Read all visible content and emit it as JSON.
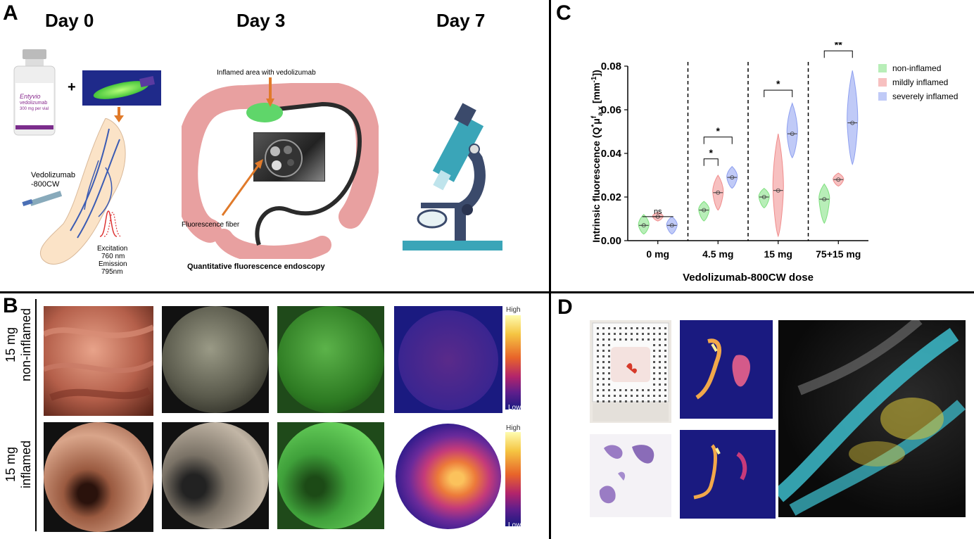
{
  "panelA": {
    "letter": "A",
    "day0": "Day 0",
    "day3": "Day 3",
    "day7": "Day 7",
    "plus": "+",
    "vial_brand": "Entyvio",
    "vial_drug": "vedolizumab",
    "vial_dose": "300 mg per vial",
    "vedolizumab_label_1": "Vedolizumab",
    "vedolizumab_label_2": "-800CW",
    "excitation_1": "Excitation",
    "excitation_2": "760 nm",
    "excitation_3": "Emission",
    "excitation_4": "795nm",
    "inflamed_area": "Inflamed area with vedolizumab",
    "fluorescence_fiber": "Fluorescence fiber",
    "quant_title": "Quantitative fluorescence endoscopy"
  },
  "panelB": {
    "letter": "B",
    "row1_line1": "15 mg",
    "row1_line2": "non-inflamed",
    "row2_line1": "15 mg",
    "row2_line2": "inflamed",
    "high": "High",
    "low": "Low"
  },
  "panelD": {
    "letter": "D"
  },
  "panelC": {
    "letter": "C"
  },
  "chart_data": {
    "type": "violin",
    "title": "",
    "xlabel": "Vedolizumab-800CW dose",
    "ylabel_main": "Intrinsic fluorescence (Q",
    "ylabel_sup1": "*",
    "ylabel_mu": "μ",
    "ylabel_sup2": "f",
    "ylabel_sub": "a,x",
    "ylabel_tail": " [mm",
    "ylabel_sup3": "-1",
    "ylabel_end": "])",
    "ylim": [
      0,
      0.08
    ],
    "yticks": [
      "0.00",
      "0.02",
      "0.04",
      "0.06",
      "0.08"
    ],
    "yticks_values": [
      0,
      0.02,
      0.04,
      0.06,
      0.08
    ],
    "categories": [
      "0 mg",
      "4.5 mg",
      "15 mg",
      "75+15 mg"
    ],
    "series": [
      {
        "name": "non-inflamed",
        "color": "#7ee07e",
        "medians": [
          0.007,
          0.014,
          0.02,
          0.019
        ],
        "ranges": [
          [
            0.003,
            0.012
          ],
          [
            0.009,
            0.018
          ],
          [
            0.015,
            0.024
          ],
          [
            0.008,
            0.026
          ]
        ]
      },
      {
        "name": "mildly inflamed",
        "color": "#f08c8c",
        "medians": [
          0.011,
          0.022,
          0.023,
          0.028
        ],
        "ranges": [
          [
            0.009,
            0.013
          ],
          [
            0.014,
            0.03
          ],
          [
            0.002,
            0.049
          ],
          [
            0.025,
            0.031
          ]
        ]
      },
      {
        "name": "severely inflamed",
        "color": "#8d9ff0",
        "medians": [
          0.007,
          0.029,
          0.049,
          0.054
        ],
        "ranges": [
          [
            0.003,
            0.011
          ],
          [
            0.024,
            0.034
          ],
          [
            0.038,
            0.063
          ],
          [
            0.035,
            0.078
          ]
        ]
      }
    ],
    "significance": [
      {
        "group": "0 mg",
        "label": "ns"
      },
      {
        "group": "4.5 mg",
        "label": "*"
      },
      {
        "group": "4.5 mg",
        "label": "*"
      },
      {
        "group": "15 mg",
        "label": "*"
      },
      {
        "group": "75+15 mg",
        "label": "**"
      }
    ],
    "legend_position": "top-right",
    "grid": false
  }
}
